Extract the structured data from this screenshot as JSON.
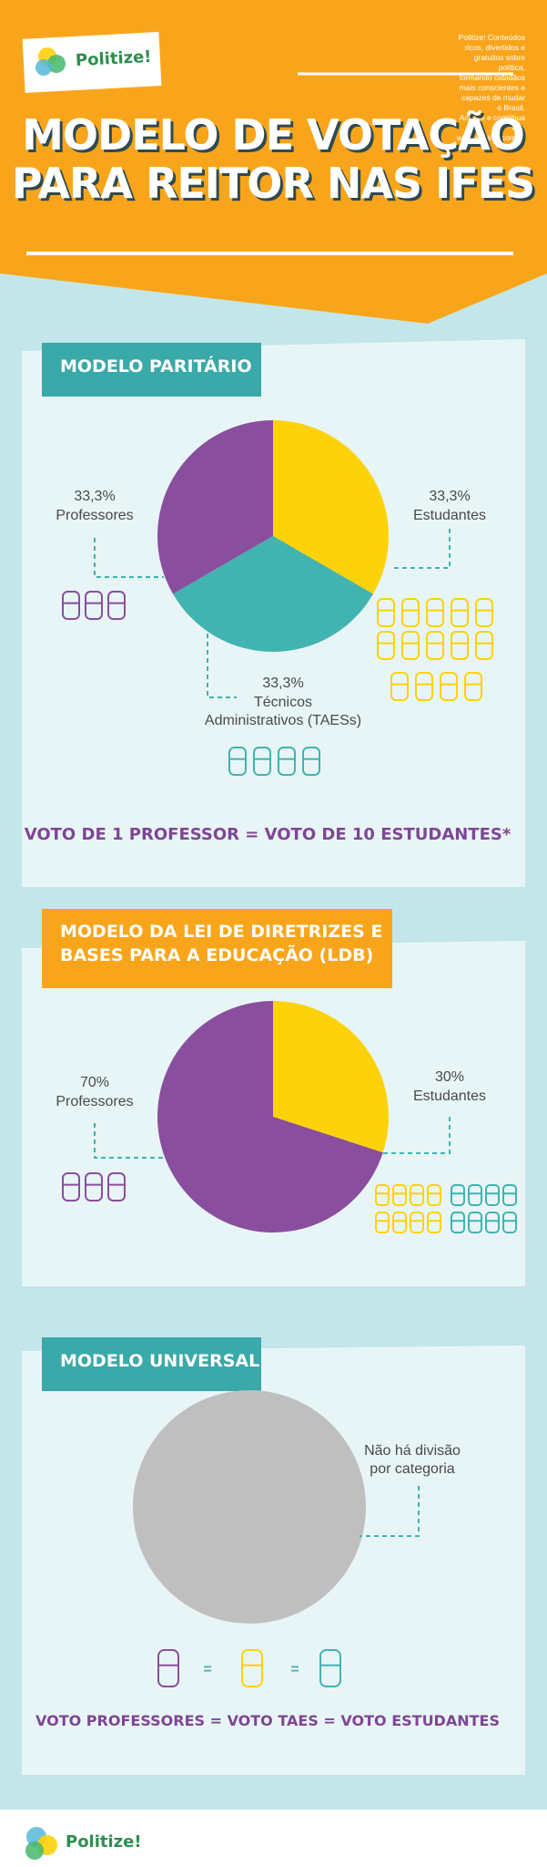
{
  "header": {
    "brand": "Politize!",
    "tagline": "Politize! Conteúdos ricos, divertidos e gratuitos sobre política,\nformando cidadãos mais conscientes e capazes de mudar o Brasil.\nAcesse e contribua em: www.politize.com.br",
    "title": "MODELO DE VOTAÇÃO\nPARA REITOR NAS IFES"
  },
  "chart_data": [
    {
      "type": "pie",
      "title": "MODELO PARITÁRIO",
      "categories": [
        "Estudantes",
        "Técnicos\nAdministrativos (TAESs)",
        "Professores"
      ],
      "values": [
        33.3,
        33.3,
        33.3
      ],
      "value_labels": [
        "33,3%",
        "33,3%",
        "33,3%"
      ],
      "colors": [
        "#fdd20a",
        "#41b3b1",
        "#8a4e9e"
      ],
      "note": "VOTO DE 1 PROFESSOR = VOTO DE 10 ESTUDANTES*"
    },
    {
      "type": "pie",
      "title": "MODELO DA LEI DE DIRETRIZES E\nBASES PARA A EDUCAÇÃO (LDB)",
      "categories": [
        "Estudantes",
        "Professores"
      ],
      "values": [
        30,
        70
      ],
      "value_labels": [
        "30%",
        "70%"
      ],
      "colors": [
        "#fdd20a",
        "#8a4e9e"
      ]
    }
  ],
  "universal": {
    "title": "MODELO UNIVERSAL",
    "label": "Não há divisão\npor categoria",
    "separators": [
      "=",
      "="
    ],
    "note": "VOTO PROFESSORES = VOTO TAES = VOTO ESTUDANTES"
  },
  "footer": {
    "brand": "Politize!"
  }
}
